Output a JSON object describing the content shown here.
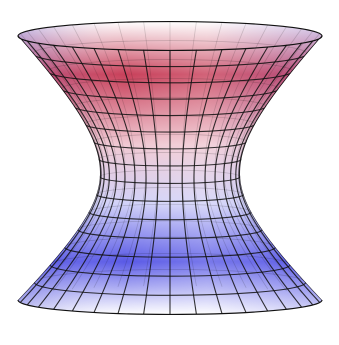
{
  "surface": {
    "shape": "hyperboloid-of-one-sheet",
    "mesh": {
      "meridians": 36,
      "parallels": 15
    },
    "colors": {
      "red": "#c8405a",
      "pink": "#f0c8d2",
      "white": "#ffffff",
      "blue": "#5a5ae6",
      "lavender": "#d2d2f8",
      "grid_line": "#111111"
    }
  }
}
